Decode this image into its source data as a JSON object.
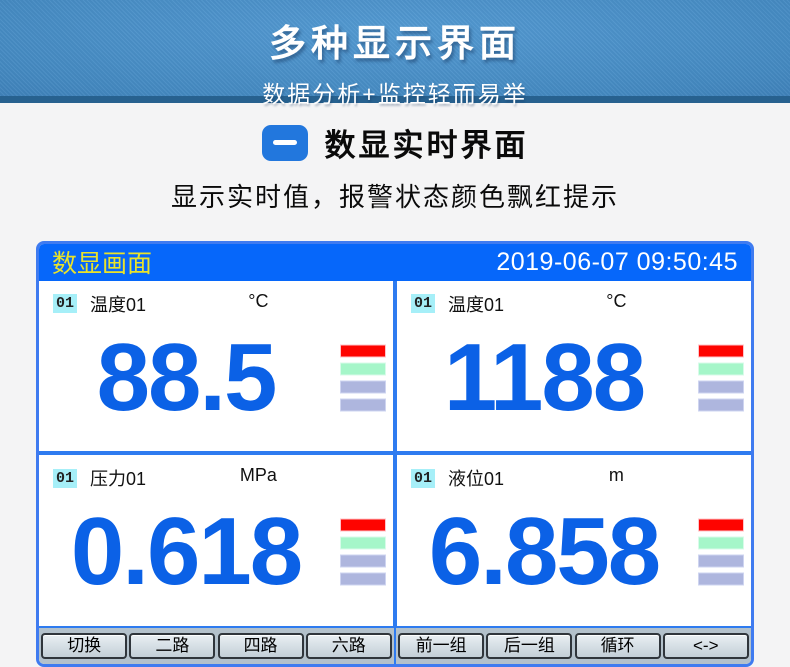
{
  "banner": {
    "title": "多种显示界面",
    "subtitle": "数据分析+监控轻而易举"
  },
  "section": {
    "title": "数显实时界面",
    "description": "显示实时值，报警状态颜色飘红提示"
  },
  "device": {
    "header": {
      "title": "数显画面",
      "datetime": "2019-06-07  09:50:45"
    },
    "channels": [
      {
        "no": "01",
        "label": "温度01",
        "unit": "°C",
        "value": "88.5"
      },
      {
        "no": "01",
        "label": "温度01",
        "unit": "°C",
        "value": "1188"
      },
      {
        "no": "01",
        "label": "压力01",
        "unit": "MPa",
        "value": "0.618"
      },
      {
        "no": "01",
        "label": "液位01",
        "unit": "m",
        "value": "6.858"
      }
    ],
    "alarm_bars": [
      {
        "fill": "#fe0400",
        "edge": "#ffc4ca"
      },
      {
        "fill": "#a5f6c9",
        "edge": "#d8fbe9"
      },
      {
        "fill": "#aeb6de",
        "edge": "#ced4f0"
      },
      {
        "fill": "#aeb6de",
        "edge": "#ced4f0"
      }
    ],
    "toolbar": {
      "buttons": [
        "切换",
        "二路",
        "四路",
        "六路",
        "前一组",
        "后一组",
        "循环",
        "<->"
      ]
    }
  },
  "colors": {
    "header_blue": "#0667fa",
    "value_blue": "#0b61e6",
    "divider_blue": "#2e7bf0",
    "header_title_yellow": "#e9e32a",
    "channel_badge_bg": "#a6eff8",
    "toolbar_bg": "#b3c1cb"
  }
}
